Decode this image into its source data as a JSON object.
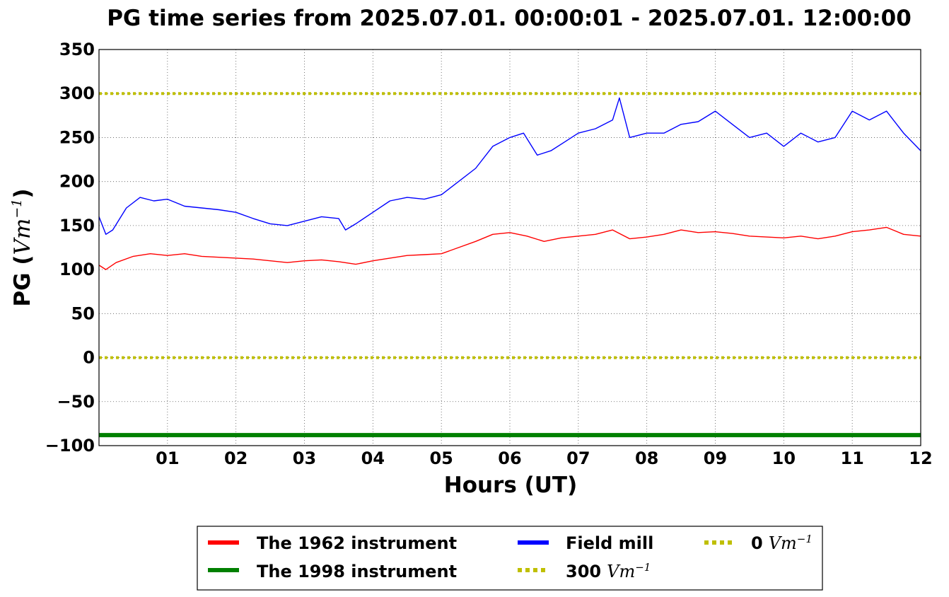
{
  "chart_data": {
    "type": "line",
    "title": "PG time series from 2025.07.01. 00:00:01 - 2025.07.01. 12:00:00",
    "xlabel": "Hours (UT)",
    "ylabel": {
      "prefix": "PG (",
      "unit_base": "Vm",
      "unit_exp": "−1",
      "suffix": ")"
    },
    "xlim": [
      0,
      12
    ],
    "ylim": [
      -100,
      350
    ],
    "grid": true,
    "legend_position": "bottom-center",
    "x_ticks": [
      {
        "value": 1,
        "label": "01"
      },
      {
        "value": 2,
        "label": "02"
      },
      {
        "value": 3,
        "label": "03"
      },
      {
        "value": 4,
        "label": "04"
      },
      {
        "value": 5,
        "label": "05"
      },
      {
        "value": 6,
        "label": "06"
      },
      {
        "value": 7,
        "label": "07"
      },
      {
        "value": 8,
        "label": "08"
      },
      {
        "value": 9,
        "label": "09"
      },
      {
        "value": 10,
        "label": "10"
      },
      {
        "value": 11,
        "label": "11"
      },
      {
        "value": 12,
        "label": "12"
      }
    ],
    "y_ticks": [
      {
        "value": 350,
        "label": "350"
      },
      {
        "value": 300,
        "label": "300"
      },
      {
        "value": 250,
        "label": "250"
      },
      {
        "value": 200,
        "label": "200"
      },
      {
        "value": 150,
        "label": "150"
      },
      {
        "value": 100,
        "label": "100"
      },
      {
        "value": 50,
        "label": "50"
      },
      {
        "value": 0,
        "label": "0"
      },
      {
        "value": -50,
        "label": "−50"
      },
      {
        "value": -100,
        "label": "−100"
      }
    ],
    "series": [
      {
        "name": "The 1962 instrument",
        "color": "#ff0000",
        "style": "solid",
        "x": [
          0,
          0.1,
          0.25,
          0.5,
          0.75,
          1,
          1.25,
          1.5,
          1.75,
          2,
          2.25,
          2.5,
          2.75,
          3,
          3.25,
          3.5,
          3.75,
          4,
          4.25,
          4.5,
          4.75,
          5,
          5.25,
          5.5,
          5.75,
          6,
          6.25,
          6.5,
          6.75,
          7,
          7.25,
          7.5,
          7.75,
          8,
          8.25,
          8.5,
          8.75,
          9,
          9.25,
          9.5,
          9.75,
          10,
          10.25,
          10.5,
          10.75,
          11,
          11.25,
          11.5,
          11.75,
          12
        ],
        "y": [
          105,
          100,
          108,
          115,
          118,
          116,
          118,
          115,
          114,
          113,
          112,
          110,
          108,
          110,
          111,
          109,
          106,
          110,
          113,
          116,
          117,
          118,
          125,
          132,
          140,
          142,
          138,
          132,
          136,
          138,
          140,
          145,
          135,
          137,
          140,
          145,
          142,
          143,
          141,
          138,
          137,
          136,
          138,
          135,
          138,
          143,
          145,
          148,
          140,
          138
        ]
      },
      {
        "name": "The 1998 instrument",
        "color": "#008000",
        "style": "solid",
        "x": [
          0,
          12
        ],
        "y": [
          -88,
          -88
        ]
      },
      {
        "name": "Field mill",
        "color": "#0000ff",
        "style": "solid",
        "x": [
          0,
          0.1,
          0.2,
          0.4,
          0.6,
          0.8,
          1,
          1.25,
          1.5,
          1.75,
          2,
          2.25,
          2.5,
          2.75,
          3,
          3.25,
          3.5,
          3.6,
          3.75,
          4,
          4.25,
          4.5,
          4.75,
          5,
          5.25,
          5.5,
          5.75,
          6,
          6.2,
          6.4,
          6.6,
          6.8,
          7,
          7.25,
          7.5,
          7.6,
          7.75,
          8,
          8.25,
          8.5,
          8.75,
          9,
          9.25,
          9.5,
          9.75,
          10,
          10.25,
          10.5,
          10.75,
          11,
          11.25,
          11.5,
          11.75,
          12
        ],
        "y": [
          160,
          140,
          145,
          170,
          182,
          178,
          180,
          172,
          170,
          168,
          165,
          158,
          152,
          150,
          155,
          160,
          158,
          145,
          152,
          165,
          178,
          182,
          180,
          185,
          200,
          215,
          240,
          250,
          255,
          230,
          235,
          245,
          255,
          260,
          270,
          295,
          250,
          255,
          255,
          265,
          268,
          280,
          265,
          250,
          255,
          240,
          255,
          245,
          250,
          280,
          270,
          280,
          255,
          235
        ]
      },
      {
        "name": "300 Vm−1",
        "label_prefix": "300",
        "color": "#bfbf00",
        "style": "dotted",
        "x": [
          0,
          12
        ],
        "y": [
          300,
          300
        ]
      },
      {
        "name": "0 Vm−1",
        "label_prefix": "0",
        "color": "#bfbf00",
        "style": "dotted",
        "x": [
          0,
          12
        ],
        "y": [
          0,
          0
        ]
      }
    ]
  }
}
